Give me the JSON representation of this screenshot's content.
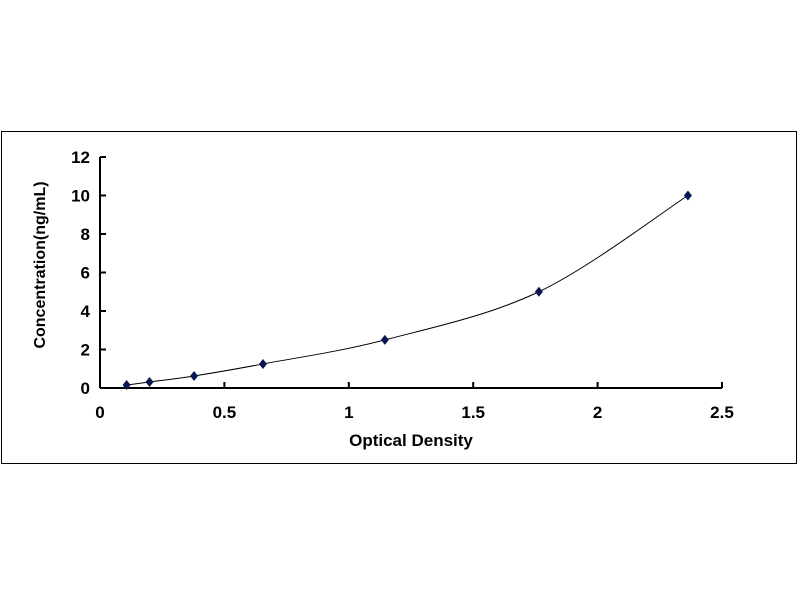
{
  "chart_data": {
    "type": "scatter",
    "xlabel": "Optical Density",
    "ylabel": "Concentration(ng/mL)",
    "xlim": [
      0,
      2.5
    ],
    "ylim": [
      0,
      12
    ],
    "xticks": [
      "0",
      "0.5",
      "1",
      "1.5",
      "2",
      "2.5"
    ],
    "yticks": [
      "0",
      "2",
      "4",
      "6",
      "8",
      "10",
      "12"
    ],
    "grid": false,
    "trendline": "smooth",
    "marker": "diamond",
    "marker_color": "#0a1650",
    "points": [
      {
        "x": 0.107,
        "y": 0.156
      },
      {
        "x": 0.199,
        "y": 0.312
      },
      {
        "x": 0.378,
        "y": 0.625
      },
      {
        "x": 0.655,
        "y": 1.25
      },
      {
        "x": 1.145,
        "y": 2.5
      },
      {
        "x": 1.764,
        "y": 5
      },
      {
        "x": 2.363,
        "y": 10
      }
    ]
  }
}
